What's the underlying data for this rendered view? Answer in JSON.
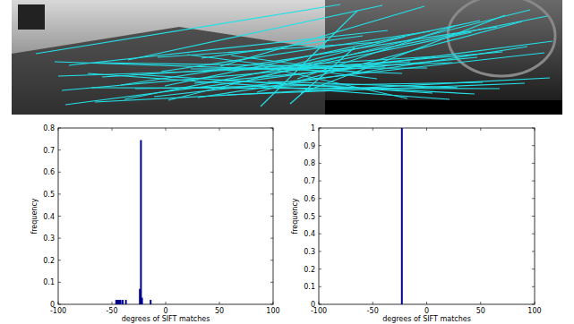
{
  "chart_data": [
    {
      "type": "bar",
      "x_label": "degrees of SIFT matches",
      "y_label": "frequency",
      "x": [
        -46,
        -45,
        -44,
        -43,
        -42,
        -40,
        -37,
        -24,
        -23,
        -22,
        -14
      ],
      "values": [
        0.02,
        0.02,
        0.02,
        0.02,
        0.02,
        0.02,
        0.02,
        0.07,
        0.745,
        0.03,
        0.02
      ],
      "color": "#00008f",
      "xlim": [
        -100,
        100
      ],
      "xticks": [
        -100,
        -50,
        0,
        50,
        100
      ],
      "ylim": [
        0,
        0.8
      ],
      "yticks": [
        0,
        0.1,
        0.2,
        0.3,
        0.4,
        0.5,
        0.6,
        0.7,
        0.8
      ]
    },
    {
      "type": "bar",
      "x_label": "degrees of SIFT matches",
      "y_label": "frequency",
      "x": [
        -23
      ],
      "values": [
        1
      ],
      "color": "#00008f",
      "xlim": [
        -100,
        100
      ],
      "xticks": [
        -100,
        -50,
        0,
        50,
        100
      ],
      "ylim": [
        0,
        1
      ],
      "yticks": [
        0,
        0.1,
        0.2,
        0.3,
        0.4,
        0.5,
        0.6,
        0.7,
        0.8,
        0.9,
        1
      ]
    }
  ]
}
